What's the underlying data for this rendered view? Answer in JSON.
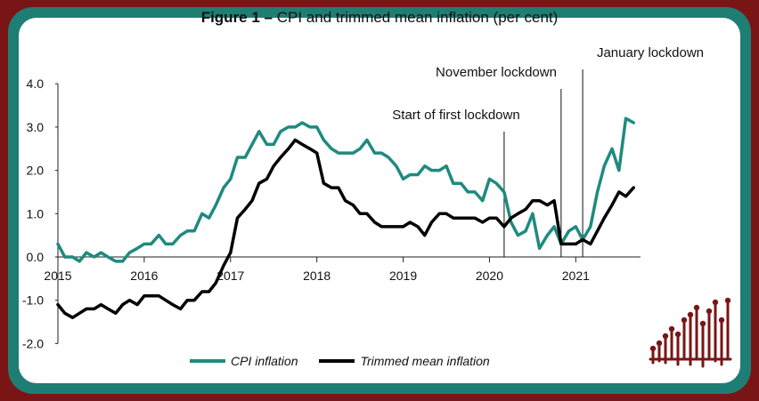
{
  "title_bold": "Figure 1 –",
  "title_rest": " CPI and trimmed mean inflation (per cent)",
  "colors": {
    "cpi": "#1f8a7f",
    "trimmed": "#000000",
    "frame_outer": "#7a1515",
    "frame_teal": "#1f7e73",
    "logo": "#7a1515"
  },
  "chart_data": {
    "type": "line",
    "title": "Figure 1 – CPI and trimmed mean inflation (per cent)",
    "ylim": [
      -2.0,
      4.0
    ],
    "y_ticks": [
      "4.0",
      "3.0",
      "2.0",
      "1.0",
      "0.0",
      "-1.0",
      "-2.0"
    ],
    "x_ticks": [
      "2015",
      "2016",
      "2017",
      "2018",
      "2019",
      "2020",
      "2021"
    ],
    "xlim": [
      2015.0,
      2021.75
    ],
    "series": [
      {
        "name": "CPI inflation",
        "x": [
          2015.0,
          2015.08,
          2015.17,
          2015.25,
          2015.33,
          2015.42,
          2015.5,
          2015.58,
          2015.67,
          2015.75,
          2015.83,
          2015.92,
          2016.0,
          2016.08,
          2016.17,
          2016.25,
          2016.33,
          2016.42,
          2016.5,
          2016.58,
          2016.67,
          2016.75,
          2016.83,
          2016.92,
          2017.0,
          2017.08,
          2017.17,
          2017.25,
          2017.33,
          2017.42,
          2017.5,
          2017.58,
          2017.67,
          2017.75,
          2017.83,
          2017.92,
          2018.0,
          2018.08,
          2018.17,
          2018.25,
          2018.33,
          2018.42,
          2018.5,
          2018.58,
          2018.67,
          2018.75,
          2018.83,
          2018.92,
          2019.0,
          2019.08,
          2019.17,
          2019.25,
          2019.33,
          2019.42,
          2019.5,
          2019.58,
          2019.67,
          2019.75,
          2019.83,
          2019.92,
          2020.0,
          2020.08,
          2020.17,
          2020.25,
          2020.33,
          2020.42,
          2020.5,
          2020.58,
          2020.67,
          2020.75,
          2020.83,
          2020.92,
          2021.0,
          2021.08,
          2021.17,
          2021.25,
          2021.33,
          2021.42,
          2021.5,
          2021.58,
          2021.67
        ],
        "values": [
          0.3,
          0.0,
          0.0,
          -0.1,
          0.1,
          0.0,
          0.1,
          0.0,
          -0.1,
          -0.1,
          0.1,
          0.2,
          0.3,
          0.3,
          0.5,
          0.3,
          0.3,
          0.5,
          0.6,
          0.6,
          1.0,
          0.9,
          1.2,
          1.6,
          1.8,
          2.3,
          2.3,
          2.6,
          2.9,
          2.6,
          2.6,
          2.9,
          3.0,
          3.0,
          3.1,
          3.0,
          3.0,
          2.7,
          2.5,
          2.4,
          2.4,
          2.4,
          2.5,
          2.7,
          2.4,
          2.4,
          2.3,
          2.1,
          1.8,
          1.9,
          1.9,
          2.1,
          2.0,
          2.0,
          2.1,
          1.7,
          1.7,
          1.5,
          1.5,
          1.3,
          1.8,
          1.7,
          1.5,
          0.8,
          0.5,
          0.6,
          1.0,
          0.2,
          0.5,
          0.7,
          0.3,
          0.6,
          0.7,
          0.4,
          0.7,
          1.5,
          2.1,
          2.5,
          2.0,
          3.2,
          3.1
        ]
      },
      {
        "name": "Trimmed mean inflation",
        "x": [
          2015.0,
          2015.08,
          2015.17,
          2015.25,
          2015.33,
          2015.42,
          2015.5,
          2015.58,
          2015.67,
          2015.75,
          2015.83,
          2015.92,
          2016.0,
          2016.08,
          2016.17,
          2016.25,
          2016.33,
          2016.42,
          2016.5,
          2016.58,
          2016.67,
          2016.75,
          2016.83,
          2016.92,
          2017.0,
          2017.08,
          2017.17,
          2017.25,
          2017.33,
          2017.42,
          2017.5,
          2017.58,
          2017.67,
          2017.75,
          2017.83,
          2017.92,
          2018.0,
          2018.08,
          2018.17,
          2018.25,
          2018.33,
          2018.42,
          2018.5,
          2018.58,
          2018.67,
          2018.75,
          2018.83,
          2018.92,
          2019.0,
          2019.08,
          2019.17,
          2019.25,
          2019.33,
          2019.42,
          2019.5,
          2019.58,
          2019.67,
          2019.75,
          2019.83,
          2019.92,
          2020.0,
          2020.08,
          2020.17,
          2020.25,
          2020.33,
          2020.42,
          2020.5,
          2020.58,
          2020.67,
          2020.75,
          2020.83,
          2020.92,
          2021.0,
          2021.08,
          2021.17,
          2021.25,
          2021.33,
          2021.42,
          2021.5,
          2021.58,
          2021.67
        ],
        "values": [
          -1.1,
          -1.3,
          -1.4,
          -1.3,
          -1.2,
          -1.2,
          -1.1,
          -1.2,
          -1.3,
          -1.1,
          -1.0,
          -1.1,
          -0.9,
          -0.9,
          -0.9,
          -1.0,
          -1.1,
          -1.2,
          -1.0,
          -1.0,
          -0.8,
          -0.8,
          -0.6,
          -0.2,
          0.1,
          0.9,
          1.1,
          1.3,
          1.7,
          1.8,
          2.1,
          2.3,
          2.5,
          2.7,
          2.6,
          2.5,
          2.4,
          1.7,
          1.6,
          1.6,
          1.3,
          1.2,
          1.0,
          1.0,
          0.8,
          0.7,
          0.7,
          0.7,
          0.7,
          0.8,
          0.7,
          0.5,
          0.8,
          1.0,
          1.0,
          0.9,
          0.9,
          0.9,
          0.9,
          0.8,
          0.9,
          0.9,
          0.7,
          0.9,
          1.0,
          1.1,
          1.3,
          1.3,
          1.2,
          1.3,
          0.3,
          0.3,
          0.3,
          0.4,
          0.3,
          0.6,
          0.9,
          1.2,
          1.5,
          1.4,
          1.6
        ]
      }
    ],
    "annotations": [
      {
        "text": "Start of first lockdown",
        "x": 2020.17
      },
      {
        "text": "November lockdown",
        "x": 2020.83
      },
      {
        "text": "January lockdown",
        "x": 2021.08
      }
    ]
  },
  "legend": {
    "cpi": "CPI inflation",
    "trimmed": "Trimmed mean inflation"
  }
}
